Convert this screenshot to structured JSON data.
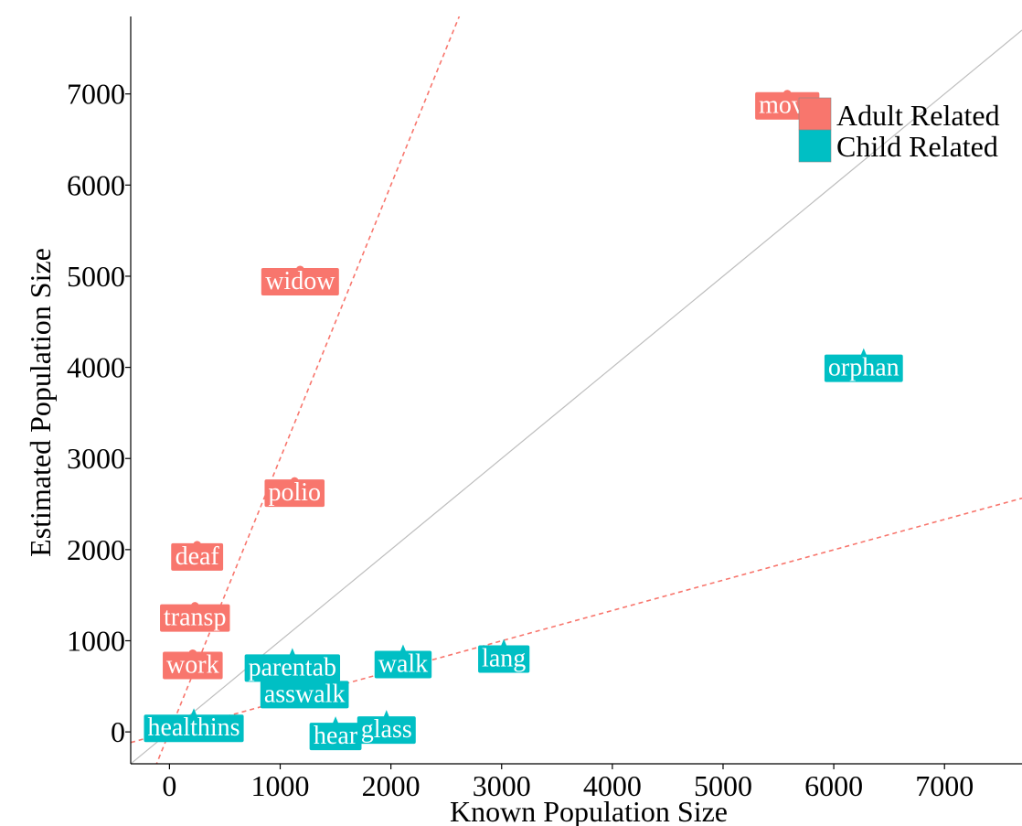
{
  "chart_data": {
    "type": "scatter",
    "xlabel": "Known Population Size",
    "ylabel": "Estimated Population Size",
    "xlim": [
      -350,
      7700
    ],
    "ylim": [
      -350,
      7850
    ],
    "x_ticks": [
      0,
      1000,
      2000,
      3000,
      4000,
      5000,
      6000,
      7000
    ],
    "y_ticks": [
      0,
      1000,
      2000,
      3000,
      4000,
      5000,
      6000,
      7000
    ],
    "grid": false,
    "legend": {
      "placement": "top-right",
      "entries": [
        {
          "name": "Adult Related",
          "color": "#F8766D"
        },
        {
          "name": "Child Related",
          "color": "#00BFC4"
        }
      ]
    },
    "reference_lines": [
      {
        "kind": "identity",
        "slope": 1.0,
        "intercept": 0,
        "color": "#BEBEBE",
        "style": "solid"
      },
      {
        "kind": "upper-bound",
        "slope": 3.0,
        "intercept": 0,
        "color": "#F8766D",
        "style": "dashed"
      },
      {
        "kind": "lower-bound",
        "slope": 0.333,
        "intercept": 0,
        "color": "#F8766D",
        "style": "dashed"
      }
    ],
    "series": [
      {
        "name": "Adult Related",
        "color": "#F8766D",
        "marker": "circle",
        "points": [
          {
            "label": "move",
            "x": 5580,
            "y": 7000
          },
          {
            "label": "widow",
            "x": 1180,
            "y": 5070
          },
          {
            "label": "polio",
            "x": 1130,
            "y": 2750
          },
          {
            "label": "deaf",
            "x": 250,
            "y": 2050
          },
          {
            "label": "transp",
            "x": 230,
            "y": 1380
          },
          {
            "label": "work",
            "x": 210,
            "y": 860
          }
        ]
      },
      {
        "name": "Child Related",
        "color": "#00BFC4",
        "marker": "triangle",
        "points": [
          {
            "label": "orphan",
            "x": 6270,
            "y": 4120
          },
          {
            "label": "lang",
            "x": 3020,
            "y": 930
          },
          {
            "label": "walk",
            "x": 2110,
            "y": 870
          },
          {
            "label": "parentab",
            "x": 1110,
            "y": 830
          },
          {
            "label": "asswalk",
            "x": 1220,
            "y": 540
          },
          {
            "label": "glass",
            "x": 1960,
            "y": 150
          },
          {
            "label": "hear",
            "x": 1500,
            "y": 80
          },
          {
            "label": "healthins",
            "x": 220,
            "y": 170
          }
        ]
      }
    ]
  }
}
